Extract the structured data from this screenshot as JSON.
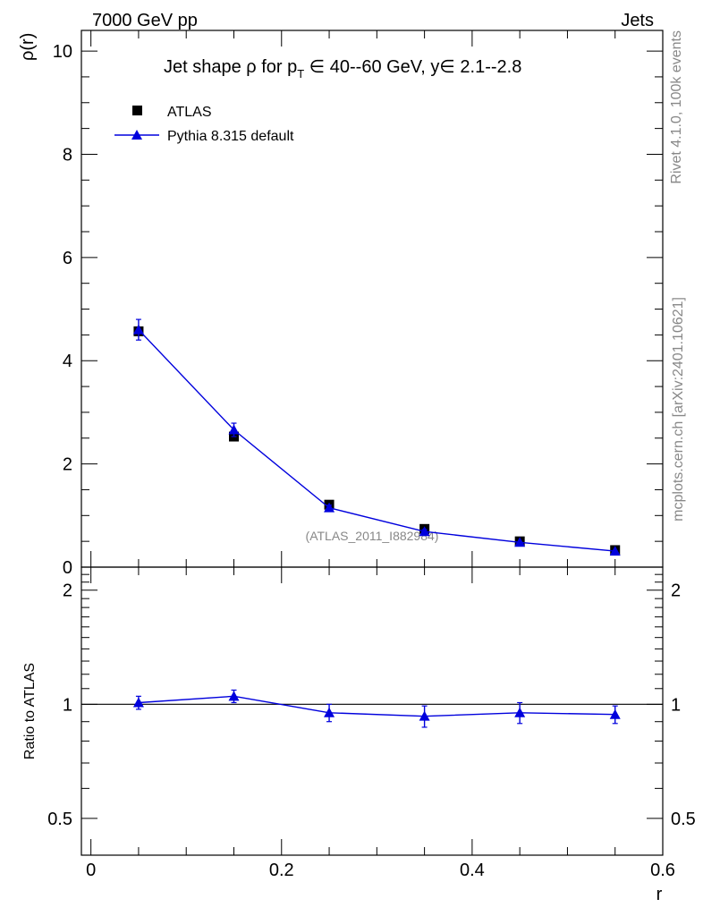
{
  "header": {
    "left": "7000 GeV pp",
    "right": "Jets"
  },
  "side_labels": {
    "top": "Rivet 4.1.0,  100k events",
    "bottom": "mcplots.cern.ch [arXiv:2401.10621]"
  },
  "chart_data": [
    {
      "type": "line",
      "panel": "main",
      "title": "Jet shape ρ for p_T ∈ 40--60 GeV, y ∈ 2.1--2.8",
      "title_parts": {
        "pre": "Jet shape ",
        "rho": "ρ",
        "for": " for p",
        "sub": "T",
        "range": " ∈ 40--60 GeV, y",
        "yrange": "∈ 2.1--2.8"
      },
      "ylabel": "ρ(r)",
      "xlabel": "r",
      "xlim": [
        -0.01,
        0.6
      ],
      "ylim": [
        0,
        10.4
      ],
      "yticks": [
        0,
        2,
        4,
        6,
        8,
        10
      ],
      "ytick_labels": [
        "0",
        "2",
        "4",
        "6",
        "8",
        "10"
      ],
      "watermark": "(ATLAS_2011_I882984)",
      "legend": {
        "placement": "top-left",
        "entries": [
          "ATLAS",
          "Pythia 8.315 default"
        ]
      },
      "series": [
        {
          "name": "ATLAS",
          "marker": "square",
          "color": "#000000",
          "x": [
            0.05,
            0.15,
            0.25,
            0.35,
            0.45,
            0.55
          ],
          "y": [
            4.57,
            2.53,
            1.21,
            0.74,
            0.5,
            0.33
          ],
          "yerr": [
            0.05,
            0.04,
            0.03,
            0.02,
            0.02,
            0.01
          ]
        },
        {
          "name": "Pythia 8.315 default",
          "marker": "triangle",
          "color": "#0000dd",
          "x": [
            0.05,
            0.15,
            0.25,
            0.35,
            0.45,
            0.55
          ],
          "y": [
            4.6,
            2.66,
            1.15,
            0.69,
            0.48,
            0.31
          ],
          "yerr": [
            0.2,
            0.13,
            0.05,
            0.04,
            0.03,
            0.02
          ]
        }
      ]
    },
    {
      "type": "line",
      "panel": "ratio",
      "ylabel": "Ratio to ATLAS",
      "xlabel": "r",
      "xlim": [
        -0.01,
        0.6
      ],
      "ylim": [
        0.4,
        2.3
      ],
      "yticks": [
        0.5,
        1,
        2
      ],
      "ytick_labels": [
        "0.5",
        "1",
        "2"
      ],
      "xticks": [
        0,
        0.2,
        0.4,
        0.6
      ],
      "xtick_labels": [
        "0",
        "0.2",
        "0.4",
        "0.6"
      ],
      "reference_line": 1,
      "series": [
        {
          "name": "Pythia 8.315 default",
          "marker": "triangle",
          "color": "#0000dd",
          "x": [
            0.05,
            0.15,
            0.25,
            0.35,
            0.45,
            0.55
          ],
          "y": [
            1.01,
            1.05,
            0.95,
            0.93,
            0.95,
            0.94
          ],
          "yerr": [
            0.04,
            0.04,
            0.05,
            0.06,
            0.06,
            0.05
          ]
        }
      ]
    }
  ]
}
